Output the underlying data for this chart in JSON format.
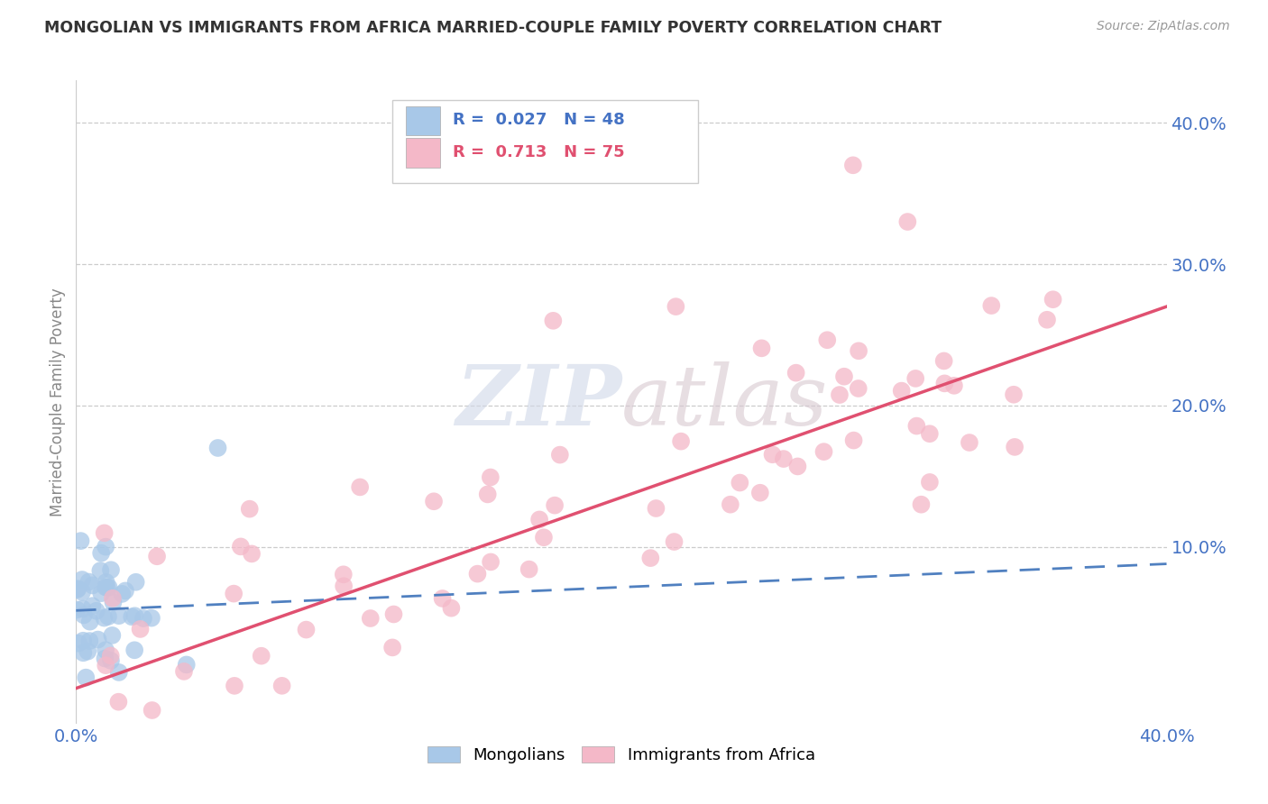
{
  "title": "MONGOLIAN VS IMMIGRANTS FROM AFRICA MARRIED-COUPLE FAMILY POVERTY CORRELATION CHART",
  "source": "Source: ZipAtlas.com",
  "ylabel": "Married-Couple Family Poverty",
  "xlim": [
    0.0,
    0.4
  ],
  "ylim": [
    -0.025,
    0.43
  ],
  "xtick_positions": [
    0.0,
    0.4
  ],
  "xtick_labels": [
    "0.0%",
    "40.0%"
  ],
  "yticks_right": [
    0.1,
    0.2,
    0.3,
    0.4
  ],
  "ytick_labels_right": [
    "10.0%",
    "20.0%",
    "30.0%",
    "40.0%"
  ],
  "hlines": [
    0.1,
    0.2,
    0.3,
    0.4
  ],
  "legend1_R": "0.027",
  "legend1_N": "48",
  "legend2_R": "0.713",
  "legend2_N": "75",
  "blue_color": "#a8c8e8",
  "pink_color": "#f4b8c8",
  "blue_line_color": "#5080c0",
  "pink_line_color": "#e05070",
  "watermark": "ZIPatlas",
  "mongo_line_x0": 0.0,
  "mongo_line_y0": 0.055,
  "mongo_line_x1": 0.4,
  "mongo_line_y1": 0.088,
  "africa_line_x0": 0.0,
  "africa_line_y0": 0.0,
  "africa_line_x1": 0.4,
  "africa_line_y1": 0.27
}
